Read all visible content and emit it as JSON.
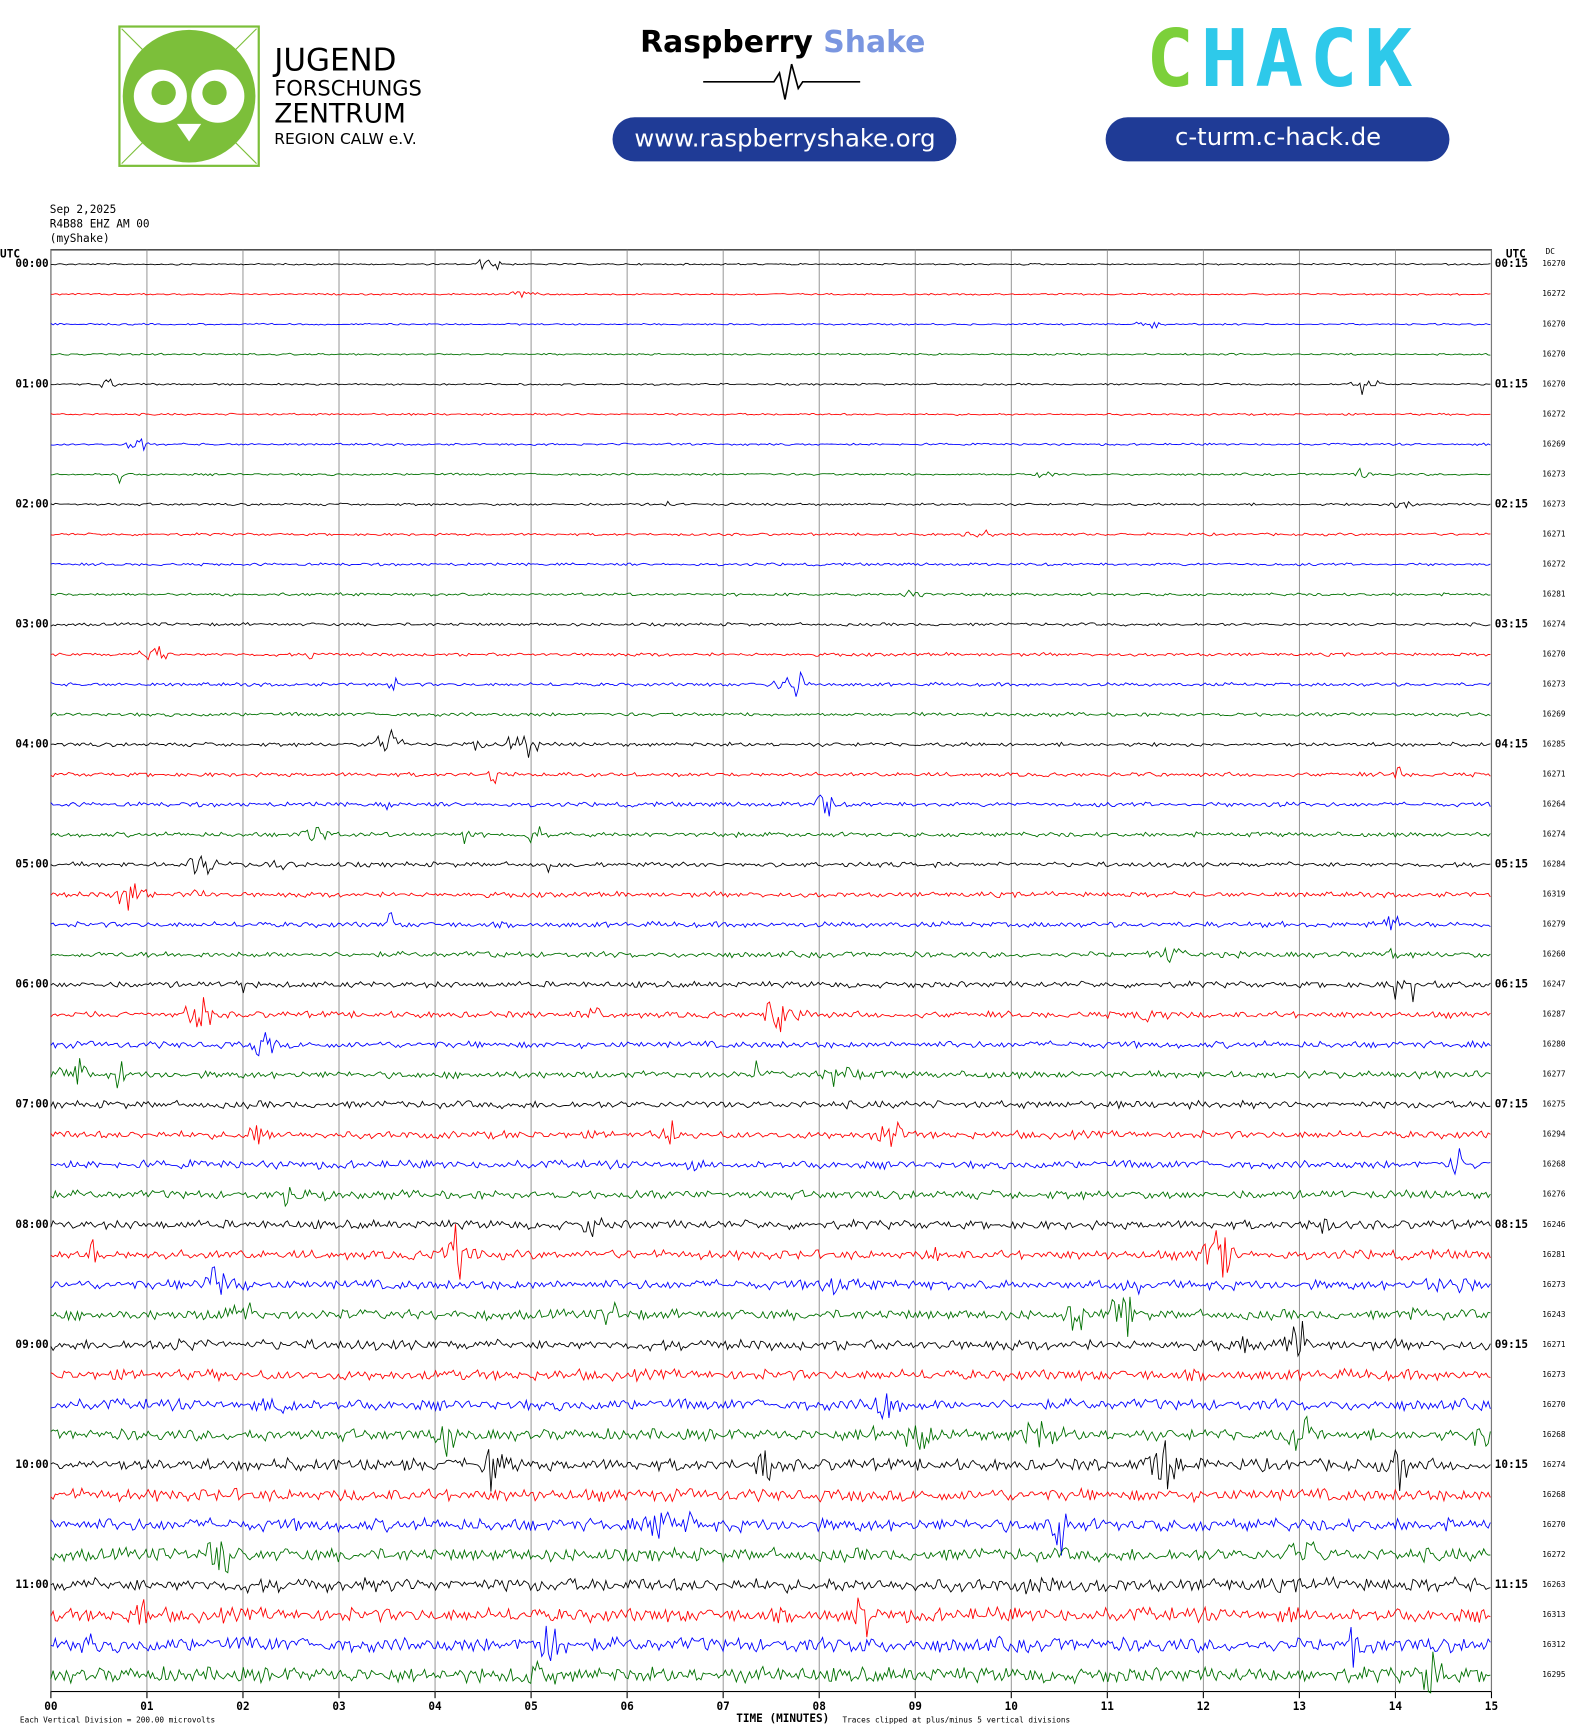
{
  "chart_data": {
    "type": "helicorder",
    "header": {
      "jfz": [
        "JUGEND",
        "FORSCHUNGS",
        "ZENTRUM",
        "REGION CALW e.V."
      ],
      "rs_name": "Raspberry",
      "rs_name2": "Shake",
      "rs_url": "www.raspberryshake.org",
      "chack_c": "C",
      "chack_rest": "HACK",
      "chack_url": "c-turm.c-hack.de"
    },
    "date": "Sep 2,2025",
    "station": "R4B88 EHZ AM 00",
    "source": "(myShake)",
    "left_axis_label": "UTC",
    "right_axis_label": "UTC",
    "dc_label": "DC",
    "left_times": [
      "00:00",
      "01:00",
      "02:00",
      "03:00",
      "04:00",
      "05:00",
      "06:00",
      "07:00",
      "08:00",
      "09:00",
      "10:00",
      "11:00"
    ],
    "right_times": [
      "00:15",
      "01:15",
      "02:15",
      "03:15",
      "04:15",
      "05:15",
      "06:15",
      "07:15",
      "08:15",
      "09:15",
      "10:15",
      "11:15"
    ],
    "dc_values": [
      16270,
      16272,
      16270,
      16270,
      16270,
      16272,
      16269,
      16273,
      16273,
      16271,
      16272,
      16281,
      16274,
      16270,
      16273,
      16269,
      16285,
      16271,
      16264,
      16274,
      16284,
      16319,
      16279,
      16260,
      16247,
      16287,
      16280,
      16277,
      16275,
      16294,
      16268,
      16276,
      16246,
      16281,
      16273,
      16243,
      16271,
      16273,
      16270,
      16268,
      16274,
      16268,
      16270,
      16272,
      16263,
      16313,
      16312,
      16295
    ],
    "colors": [
      "#000000",
      "#ff0000",
      "#0000ff",
      "#007000"
    ],
    "xlim": [
      0,
      15
    ],
    "xticks": [
      {
        "value": 0,
        "label": "00"
      },
      {
        "value": 1,
        "label": "01"
      },
      {
        "value": 2,
        "label": "02"
      },
      {
        "value": 3,
        "label": "03"
      },
      {
        "value": 4,
        "label": "04"
      },
      {
        "value": 5,
        "label": "05"
      },
      {
        "value": 6,
        "label": "06"
      },
      {
        "value": 7,
        "label": "07"
      },
      {
        "value": 8,
        "label": "08"
      },
      {
        "value": 9,
        "label": "09"
      },
      {
        "value": 10,
        "label": "10"
      },
      {
        "value": 11,
        "label": "11"
      },
      {
        "value": 12,
        "label": "12"
      },
      {
        "value": 13,
        "label": "13"
      },
      {
        "value": 14,
        "label": "14"
      },
      {
        "value": 15,
        "label": "15"
      }
    ],
    "xlabel": "TIME (MINUTES)",
    "division_note": "Each Vertical Division = 200.00 microvolts",
    "clip_note": "Traces clipped at plus/minus 5 vertical divisions",
    "grid": true
  }
}
